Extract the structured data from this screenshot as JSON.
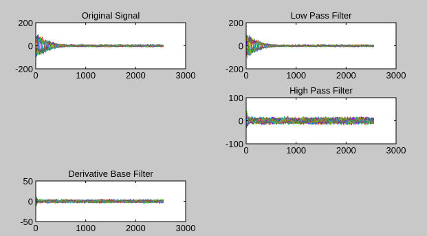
{
  "figure": {
    "background": "#c8c8c8"
  },
  "chart_data": [
    {
      "type": "line",
      "title": "Original Signal",
      "xlabel": "",
      "ylabel": "",
      "xlim": [
        0,
        3000
      ],
      "ylim": [
        -200,
        200
      ],
      "xticks": [
        0,
        1000,
        2000,
        3000
      ],
      "yticks": [
        -200,
        0,
        200
      ],
      "grid": false,
      "samples": 2560,
      "num_series": 16,
      "amplitude_profile": {
        "initial_peak": 130,
        "decay_until_x": 600,
        "steady_amplitude": 10
      },
      "series_colors": [
        "#0000ff",
        "#008000",
        "#ff0000",
        "#00bfbf",
        "#bf00bf",
        "#bfbf00",
        "#404040",
        "#00ff00",
        "#0080ff",
        "#ff8000",
        "#8000ff",
        "#00a060",
        "#c04040",
        "#40a0c0",
        "#a0a000",
        "#606060"
      ]
    },
    {
      "type": "line",
      "title": "Low Pass Filter",
      "xlabel": "",
      "ylabel": "",
      "xlim": [
        0,
        3000
      ],
      "ylim": [
        -200,
        200
      ],
      "xticks": [
        0,
        1000,
        2000,
        3000
      ],
      "yticks": [
        -200,
        0,
        200
      ],
      "grid": false,
      "samples": 2560,
      "num_series": 16,
      "amplitude_profile": {
        "initial_peak": 125,
        "decay_until_x": 600,
        "steady_amplitude": 9
      },
      "series_colors": [
        "#0000ff",
        "#008000",
        "#ff0000",
        "#00bfbf",
        "#bf00bf",
        "#bfbf00",
        "#404040",
        "#00ff00",
        "#0080ff",
        "#ff8000",
        "#8000ff",
        "#00a060",
        "#c04040",
        "#40a0c0",
        "#a0a000",
        "#606060"
      ]
    },
    {
      "type": "line",
      "title": "High Pass Filter",
      "xlabel": "",
      "ylabel": "",
      "xlim": [
        0,
        3000
      ],
      "ylim": [
        -100,
        100
      ],
      "xticks": [
        0,
        1000,
        2000,
        3000
      ],
      "yticks": [
        -100,
        0,
        100
      ],
      "grid": false,
      "samples": 2560,
      "num_series": 16,
      "amplitude_profile": {
        "initial_peak": 55,
        "decay_until_x": 60,
        "steady_amplitude": 15
      },
      "series_colors": [
        "#0000ff",
        "#008000",
        "#ff0000",
        "#00bfbf",
        "#bf00bf",
        "#bfbf00",
        "#404040",
        "#00ff00",
        "#0080ff",
        "#ff8000",
        "#8000ff",
        "#00a060",
        "#c04040",
        "#40a0c0",
        "#a0a000",
        "#606060"
      ]
    },
    {
      "type": "line",
      "title": "Derivative Base Filter",
      "xlabel": "",
      "ylabel": "",
      "xlim": [
        0,
        3000
      ],
      "ylim": [
        -50,
        50
      ],
      "xticks": [
        0,
        1000,
        2000,
        3000
      ],
      "yticks": [
        -50,
        0,
        50
      ],
      "grid": false,
      "samples": 2560,
      "num_series": 16,
      "amplitude_profile": {
        "initial_peak": 20,
        "decay_until_x": 40,
        "steady_amplitude": 4
      },
      "series_colors": [
        "#0000ff",
        "#008000",
        "#ff0000",
        "#00bfbf",
        "#bf00bf",
        "#bfbf00",
        "#404040",
        "#00ff00",
        "#0080ff",
        "#ff8000",
        "#8000ff",
        "#00a060",
        "#c04040",
        "#40a0c0",
        "#a0a000",
        "#606060"
      ]
    }
  ]
}
